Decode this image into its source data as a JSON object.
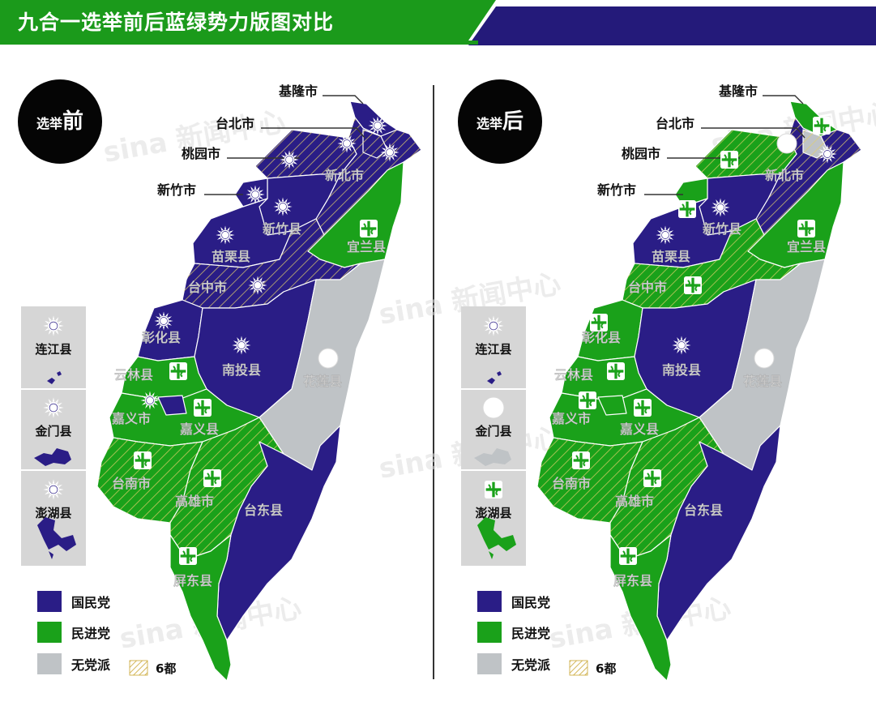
{
  "title": "九合一选举前后蓝绿势力版图对比",
  "colors": {
    "kmt": "#2a1d86",
    "dpp": "#1aa11a",
    "independent": "#bfc3c6",
    "header_green": "#1b9a1b",
    "header_navy": "#241a7a"
  },
  "maps": [
    {
      "badge_prefix": "选举",
      "badge_main": "前",
      "labels": {
        "keelung": "基隆市",
        "taipei": "台北市",
        "taoyuan": "桃园市",
        "hsinchu_city": "新竹市",
        "new_taipei": "新北市",
        "hsinchu_county": "新竹县",
        "yilan": "宜兰县",
        "miaoli": "苗栗县",
        "taichung": "台中市",
        "changhua": "彰化县",
        "nantou": "南投县",
        "hualien": "花莲县",
        "yunlin": "云林县",
        "chiayi_city": "嘉义市",
        "chiayi_county": "嘉义县",
        "tainan": "台南市",
        "kaohsiung": "高雄市",
        "taitung": "台东县",
        "pingtung": "屏东县"
      },
      "islands": [
        {
          "name": "连江县",
          "party": "kmt"
        },
        {
          "name": "金门县",
          "party": "kmt"
        },
        {
          "name": "澎湖县",
          "party": "kmt"
        }
      ]
    },
    {
      "badge_prefix": "选举",
      "badge_main": "后",
      "labels": {
        "keelung": "基隆市",
        "taipei": "台北市",
        "taoyuan": "桃园市",
        "hsinchu_city": "新竹市",
        "new_taipei": "新北市",
        "hsinchu_county": "新竹县",
        "yilan": "宜兰县",
        "miaoli": "苗栗县",
        "taichung": "台中市",
        "changhua": "彰化县",
        "nantou": "南投县",
        "hualien": "花莲县",
        "yunlin": "云林县",
        "chiayi_city": "嘉义市",
        "chiayi_county": "嘉义县",
        "tainan": "台南市",
        "kaohsiung": "高雄市",
        "taitung": "台东县",
        "pingtung": "屏东县"
      },
      "islands": [
        {
          "name": "连江县",
          "party": "kmt"
        },
        {
          "name": "金门县",
          "party": "independent"
        },
        {
          "name": "澎湖县",
          "party": "dpp"
        }
      ]
    }
  ],
  "legend": {
    "kmt": "国民党",
    "dpp": "民进党",
    "independent": "无党派",
    "six_cities": "6都"
  },
  "watermark": "sina 新闻中心"
}
